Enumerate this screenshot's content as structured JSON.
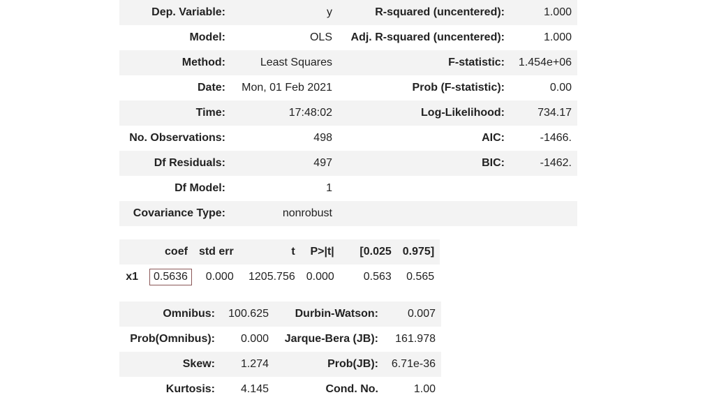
{
  "summary": {
    "rows": [
      {
        "l1": "Dep. Variable:",
        "v1": "y",
        "l2": "R-squared (uncentered):",
        "v2": "1.000"
      },
      {
        "l1": "Model:",
        "v1": "OLS",
        "l2": "Adj. R-squared (uncentered):",
        "v2": "1.000"
      },
      {
        "l1": "Method:",
        "v1": "Least Squares",
        "l2": "F-statistic:",
        "v2": "1.454e+06"
      },
      {
        "l1": "Date:",
        "v1": "Mon, 01 Feb 2021",
        "l2": "Prob (F-statistic):",
        "v2": "0.00"
      },
      {
        "l1": "Time:",
        "v1": "17:48:02",
        "l2": "Log-Likelihood:",
        "v2": "734.17"
      },
      {
        "l1": "No. Observations:",
        "v1": "498",
        "l2": "AIC:",
        "v2": "-1466."
      },
      {
        "l1": "Df Residuals:",
        "v1": "497",
        "l2": "BIC:",
        "v2": "-1462."
      },
      {
        "l1": "Df Model:",
        "v1": "1",
        "l2": "",
        "v2": ""
      },
      {
        "l1": "Covariance Type:",
        "v1": "nonrobust",
        "l2": "",
        "v2": ""
      }
    ]
  },
  "coef": {
    "headers": [
      "",
      "coef",
      "std err",
      "t",
      "P>|t|",
      "[0.025",
      "0.975]"
    ],
    "rows": [
      {
        "name": "x1",
        "values": [
          "0.5636",
          "0.000",
          "1205.756",
          "0.000",
          "0.563",
          "0.565"
        ]
      }
    ]
  },
  "diagnostics": {
    "rows": [
      {
        "l1": "Omnibus:",
        "v1": "100.625",
        "l2": "Durbin-Watson:",
        "v2": "0.007"
      },
      {
        "l1": "Prob(Omnibus):",
        "v1": "0.000",
        "l2": "Jarque-Bera (JB):",
        "v2": "161.978"
      },
      {
        "l1": "Skew:",
        "v1": "1.274",
        "l2": "Prob(JB):",
        "v2": "6.71e-36"
      },
      {
        "l1": "Kurtosis:",
        "v1": "4.145",
        "l2": "Cond. No.",
        "v2": "1.00"
      }
    ]
  }
}
